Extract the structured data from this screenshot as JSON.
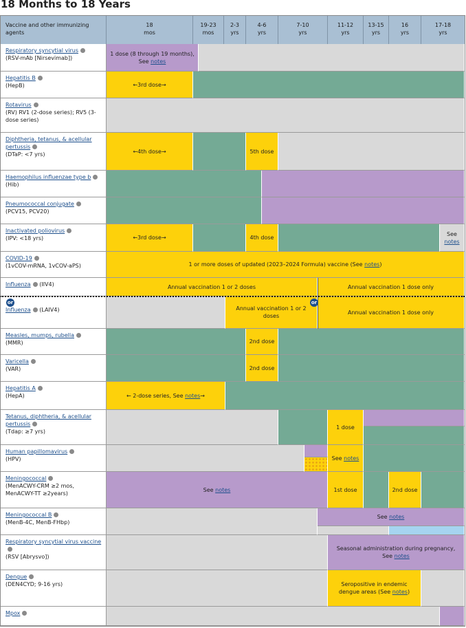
{
  "title": "18 Months to 18 Years",
  "table": {
    "header": {
      "agent": "Vaccine and other immunizing agents",
      "columns": [
        {
          "top": "18",
          "bottom": "mos"
        },
        {
          "top": "19-23",
          "bottom": "mos"
        },
        {
          "top": "2-3",
          "bottom": "yrs"
        },
        {
          "top": "4-6",
          "bottom": "yrs"
        },
        {
          "top": "7-10",
          "bottom": "yrs"
        },
        {
          "top": "11-12",
          "bottom": "yrs"
        },
        {
          "top": "13-15",
          "bottom": "yrs"
        },
        {
          "top": "16",
          "bottom": "yrs"
        },
        {
          "top": "17-18",
          "bottom": "yrs"
        }
      ]
    },
    "or_label": "or",
    "rows": [
      {
        "name": "Respiratory syncytial virus",
        "sub": "(RSV-mAb [Nirsevimab])",
        "cells": [
          {
            "text": "1 dose (8 through 19 months), See ",
            "link": "notes"
          }
        ]
      },
      {
        "name": "Hepatitis B",
        "sub": "(HepB)",
        "cells": [
          "←3rd dose→"
        ]
      },
      {
        "name": "Rotavirus",
        "sub": "(RV) RV1 (2-dose series); RV5 (3-dose series)",
        "cells": []
      },
      {
        "name": "Diphtheria, tetanus, & acellular pertussis",
        "sub": "(DTaP: <7 yrs)",
        "cells": [
          "←4th dose→",
          "5th dose"
        ]
      },
      {
        "name": "Haemophilus influenzae type b",
        "sub": "(Hib)",
        "cells": []
      },
      {
        "name": "Pneumococcal conjugate",
        "sub": "(PCV15, PCV20)",
        "cells": []
      },
      {
        "name": "Inactivated poliovirus",
        "sub": "(IPV: <18 yrs)",
        "cells": [
          "←3rd dose→",
          "4th dose",
          {
            "text": "See ",
            "link": "notes"
          }
        ]
      },
      {
        "name": "COVID-19",
        "sub": "(1vCOV-mRNA, 1vCOV-aPS)",
        "cells": [
          {
            "text": "1 or more doses of updated (2023–2024 Formula) vaccine (See ",
            "link": "notes",
            "after": ")"
          }
        ]
      },
      {
        "name": "Influenza",
        "sub": "(IIV4)",
        "cells": [
          "Annual vaccination 1 or 2 doses",
          "Annual vaccination 1 dose only"
        ]
      },
      {
        "name": "Influenza",
        "sub": "(LAIV4)",
        "cells": [
          "Annual vaccination 1 or 2 doses",
          "Annual vaccination 1 dose only"
        ]
      },
      {
        "name": "Measles, mumps, rubella",
        "sub": "(MMR)",
        "cells": [
          "2nd dose"
        ]
      },
      {
        "name": "Varicella",
        "sub": "(VAR)",
        "cells": [
          "2nd dose"
        ]
      },
      {
        "name": "Hepatitis A",
        "sub": "(HepA)",
        "cells": [
          {
            "text": "← 2-dose series, See ",
            "link": "notes",
            "after": "→"
          }
        ]
      },
      {
        "name": "Tetanus, diphtheria, & acellular pertussis",
        "sub": "(Tdap: ≥7 yrs)",
        "cells": [
          "1 dose"
        ]
      },
      {
        "name": "Human papillomavirus",
        "sub": "(HPV)",
        "cells": [
          {
            "text": "See ",
            "link": "notes"
          }
        ]
      },
      {
        "name": "Meningococcal",
        "sub": "(MenACWY-CRM ≥2 mos, MenACWY-TT ≥2years)",
        "cells": [
          {
            "text": "See ",
            "link": "notes"
          },
          "1st dose",
          "2nd dose"
        ]
      },
      {
        "name": "Meningococcal B",
        "sub": "(MenB-4C, MenB-FHbp)",
        "cells": [
          {
            "text": "See ",
            "link": "notes"
          }
        ]
      },
      {
        "name": "Respiratory syncytial virus vaccine",
        "sub": "(RSV [Abrysvo])",
        "cells": [
          {
            "text": "Seasonal administration during pregnancy, See ",
            "link": "notes"
          }
        ]
      },
      {
        "name": "Dengue",
        "sub": "(DEN4CYD; 9-16 yrs)",
        "cells": [
          {
            "text": "Seropositive in endemic dengue areas (See ",
            "link": "notes",
            "after": ")"
          }
        ]
      },
      {
        "name": "Mpox",
        "cells": []
      }
    ]
  }
}
